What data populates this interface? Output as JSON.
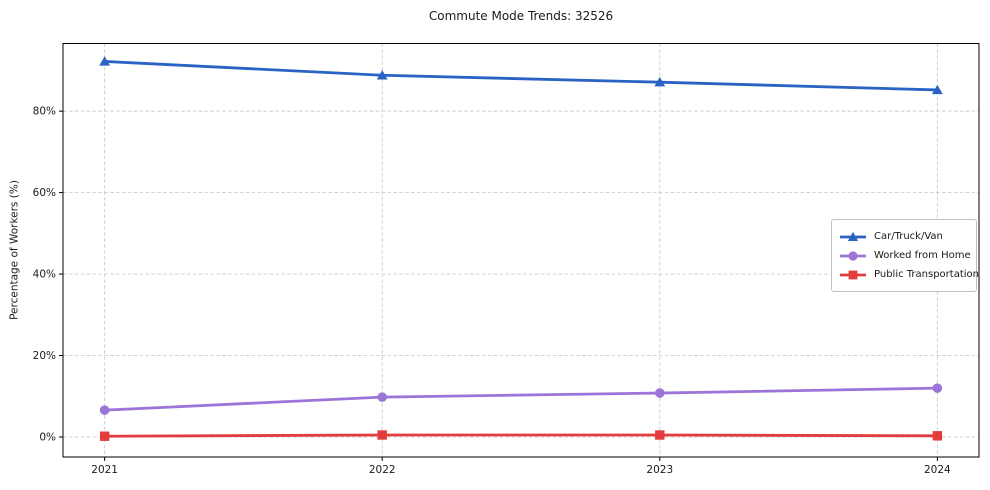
{
  "figure": {
    "background": "#ffffff",
    "text_color": "#1a1a1a",
    "spine_color": "#000000",
    "grid_color": "#cbcbcb",
    "legend_border_color": "#c0c0c0"
  },
  "chart_data": {
    "type": "line",
    "title": "Commute Mode Trends: 32526",
    "xlabel": "",
    "ylabel": "Percentage of Workers (%)",
    "x": [
      2021,
      2022,
      2023,
      2024
    ],
    "x_tick_labels": [
      "2021",
      "2022",
      "2023",
      "2024"
    ],
    "y_ticks": [
      0,
      20,
      40,
      60,
      80
    ],
    "y_tick_labels": [
      "0%",
      "20%",
      "40%",
      "60%",
      "80%"
    ],
    "xlim": [
      2020.85,
      2024.15
    ],
    "ylim": [
      -4.9,
      96.6
    ],
    "grid": true,
    "grid_style": "dashed",
    "legend_position": "center-right",
    "series": [
      {
        "name": "Car/Truck/Van",
        "color": "#2a63c4",
        "marker": "triangle",
        "values": [
          92.2,
          88.8,
          87.1,
          85.2
        ]
      },
      {
        "name": "Worked from Home",
        "color": "#9b76d8",
        "marker": "circle",
        "values": [
          6.6,
          9.8,
          10.8,
          12.0
        ]
      },
      {
        "name": "Public Transportation",
        "color": "#e23c3c",
        "marker": "square",
        "values": [
          0.2,
          0.5,
          0.5,
          0.3
        ]
      }
    ]
  }
}
